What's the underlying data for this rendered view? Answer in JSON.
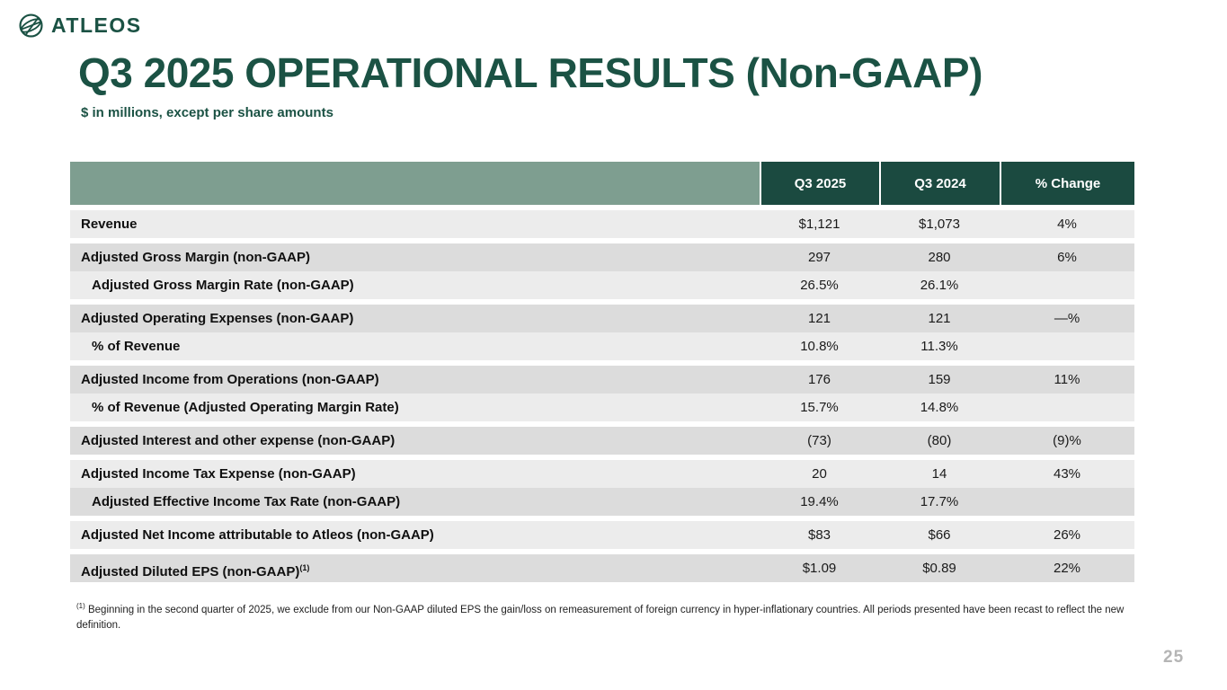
{
  "logo": {
    "brand": "ATLEOS",
    "icon": "globe-icon"
  },
  "slide": {
    "title": "Q3 2025 OPERATIONAL RESULTS (Non-GAAP)",
    "subtitle": "$ in millions, except per share amounts",
    "page_number": "25"
  },
  "table": {
    "columns": [
      "Q3 2025",
      "Q3 2024",
      "% Change"
    ],
    "rows": [
      {
        "label": "Revenue",
        "values": [
          "$1,121",
          "$1,073",
          "4%"
        ],
        "indent": false,
        "shade": "light",
        "gap_before": true
      },
      {
        "label": "Adjusted Gross Margin (non-GAAP)",
        "values": [
          "297",
          "280",
          "6%"
        ],
        "indent": false,
        "shade": "dark",
        "gap_before": true
      },
      {
        "label": "Adjusted Gross Margin Rate (non-GAAP)",
        "values": [
          "26.5%",
          "26.1%",
          ""
        ],
        "indent": true,
        "shade": "light",
        "gap_before": false
      },
      {
        "label": "Adjusted Operating Expenses (non-GAAP)",
        "values": [
          "121",
          "121",
          "—%"
        ],
        "indent": false,
        "shade": "dark",
        "gap_before": true
      },
      {
        "label": "% of Revenue",
        "values": [
          "10.8%",
          "11.3%",
          ""
        ],
        "indent": true,
        "shade": "light",
        "gap_before": false
      },
      {
        "label": "Adjusted Income from Operations (non-GAAP)",
        "values": [
          "176",
          "159",
          "11%"
        ],
        "indent": false,
        "shade": "dark",
        "gap_before": true
      },
      {
        "label": "% of Revenue (Adjusted Operating Margin Rate)",
        "values": [
          "15.7%",
          "14.8%",
          ""
        ],
        "indent": true,
        "shade": "light",
        "gap_before": false
      },
      {
        "label": "Adjusted Interest and other expense (non-GAAP)",
        "values": [
          "(73)",
          "(80)",
          "(9)%"
        ],
        "indent": false,
        "shade": "dark",
        "gap_before": true
      },
      {
        "label": "Adjusted Income Tax Expense (non-GAAP)",
        "values": [
          "20",
          "14",
          "43%"
        ],
        "indent": false,
        "shade": "light",
        "gap_before": true
      },
      {
        "label": "Adjusted Effective Income Tax Rate (non-GAAP)",
        "values": [
          "19.4%",
          "17.7%",
          ""
        ],
        "indent": true,
        "shade": "dark",
        "gap_before": false
      },
      {
        "label": "Adjusted Net Income attributable to Atleos (non-GAAP)",
        "values": [
          "$83",
          "$66",
          "26%"
        ],
        "indent": false,
        "shade": "light",
        "gap_before": true
      },
      {
        "label": "Adjusted Diluted EPS (non-GAAP)",
        "sup": "(1)",
        "values": [
          "$1.09",
          "$0.89",
          "22%"
        ],
        "indent": false,
        "shade": "dark",
        "gap_before": true
      }
    ]
  },
  "footnote": {
    "marker": "(1)",
    "text": "Beginning in the second quarter of 2025, we exclude from our Non-GAAP diluted EPS the gain/loss on remeasurement of foreign currency in hyper-inflationary countries. All periods presented have been recast to reflect the new definition."
  },
  "colors": {
    "brand_green": "#1B5244",
    "header_green": "#1B4A40",
    "header_sage": "#7E9E90",
    "row_light": "#ECECEC",
    "row_dark": "#DCDCDC"
  }
}
